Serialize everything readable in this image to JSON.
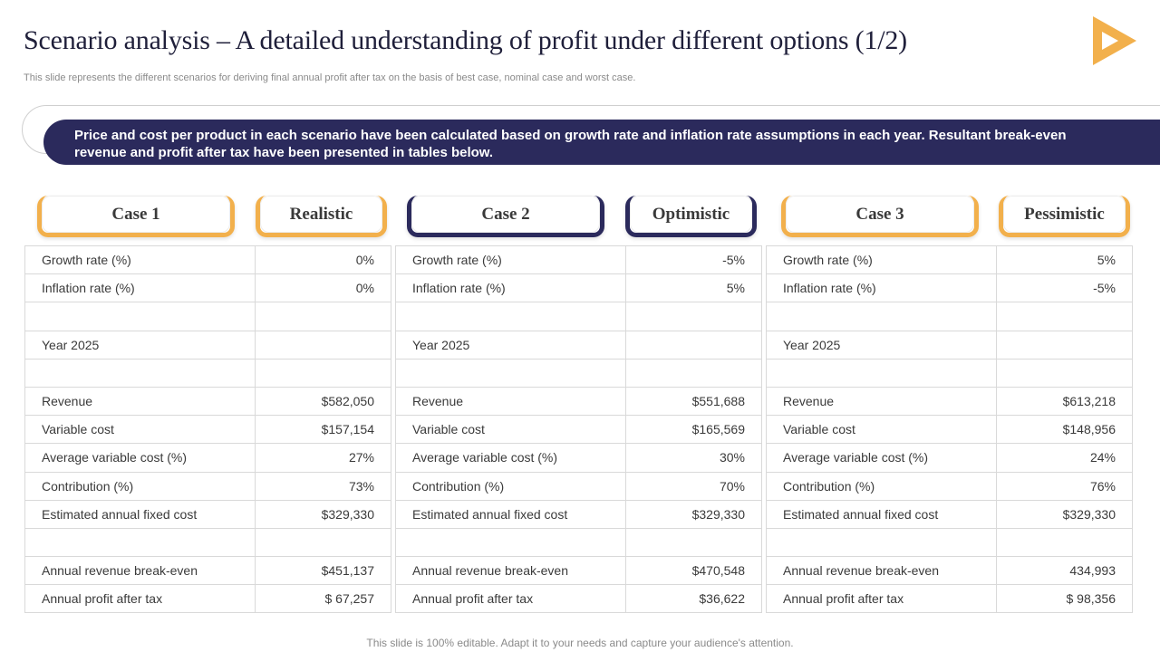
{
  "slide": {
    "title": "Scenario analysis – A detailed understanding of profit under different options (1/2)",
    "subtitle": "This slide represents the different scenarios for deriving final annual profit after tax on the basis of best case, nominal case and worst case.",
    "banner": "Price and cost per product in each scenario have been calculated based on growth rate and inflation rate assumptions in each year. Resultant break-even revenue and profit after tax have been presented in tables below.",
    "footer": "This slide is 100% editable. Adapt it to your needs and capture your audience's attention."
  },
  "colors": {
    "navy": "#2b2a5c",
    "orange": "#f2b04c",
    "logo": "#f2b04c"
  },
  "icons": {
    "logo": "play-triangle-icon"
  },
  "cases": [
    {
      "name": "Case 1",
      "scenario": "Realistic",
      "accent": "orange",
      "rows": [
        [
          "Growth rate (%)",
          "0%"
        ],
        [
          "Inflation rate (%)",
          "0%"
        ],
        [
          "",
          ""
        ],
        [
          "Year 2025",
          ""
        ],
        [
          "",
          ""
        ],
        [
          "Revenue",
          "$582,050"
        ],
        [
          "Variable cost",
          "$157,154"
        ],
        [
          "Average variable cost (%)",
          "27%"
        ],
        [
          "Contribution (%)",
          "73%"
        ],
        [
          "Estimated annual fixed cost",
          "$329,330"
        ],
        [
          "",
          ""
        ],
        [
          "Annual revenue break-even",
          "$451,137"
        ],
        [
          "Annual profit after tax",
          "$ 67,257"
        ]
      ]
    },
    {
      "name": "Case 2",
      "scenario": "Optimistic",
      "accent": "navy",
      "rows": [
        [
          "Growth rate (%)",
          "-5%"
        ],
        [
          "Inflation rate (%)",
          "5%"
        ],
        [
          "",
          ""
        ],
        [
          "Year 2025",
          ""
        ],
        [
          "",
          ""
        ],
        [
          "Revenue",
          "$551,688"
        ],
        [
          "Variable cost",
          "$165,569"
        ],
        [
          "Average variable cost (%)",
          "30%"
        ],
        [
          "Contribution (%)",
          "70%"
        ],
        [
          "Estimated annual fixed cost",
          "$329,330"
        ],
        [
          "",
          ""
        ],
        [
          "Annual revenue break-even",
          "$470,548"
        ],
        [
          "Annual profit after tax",
          "$36,622"
        ]
      ]
    },
    {
      "name": "Case 3",
      "scenario": "Pessimistic",
      "accent": "orange",
      "rows": [
        [
          "Growth rate (%)",
          "5%"
        ],
        [
          "Inflation rate (%)",
          "-5%"
        ],
        [
          "",
          ""
        ],
        [
          "Year 2025",
          ""
        ],
        [
          "",
          ""
        ],
        [
          "Revenue",
          "$613,218"
        ],
        [
          "Variable cost",
          "$148,956"
        ],
        [
          "Average variable cost (%)",
          "24%"
        ],
        [
          "Contribution (%)",
          "76%"
        ],
        [
          "Estimated annual fixed cost",
          "$329,330"
        ],
        [
          "",
          ""
        ],
        [
          "Annual revenue break-even",
          "434,993"
        ],
        [
          "Annual profit after tax",
          "$ 98,356"
        ]
      ]
    }
  ]
}
